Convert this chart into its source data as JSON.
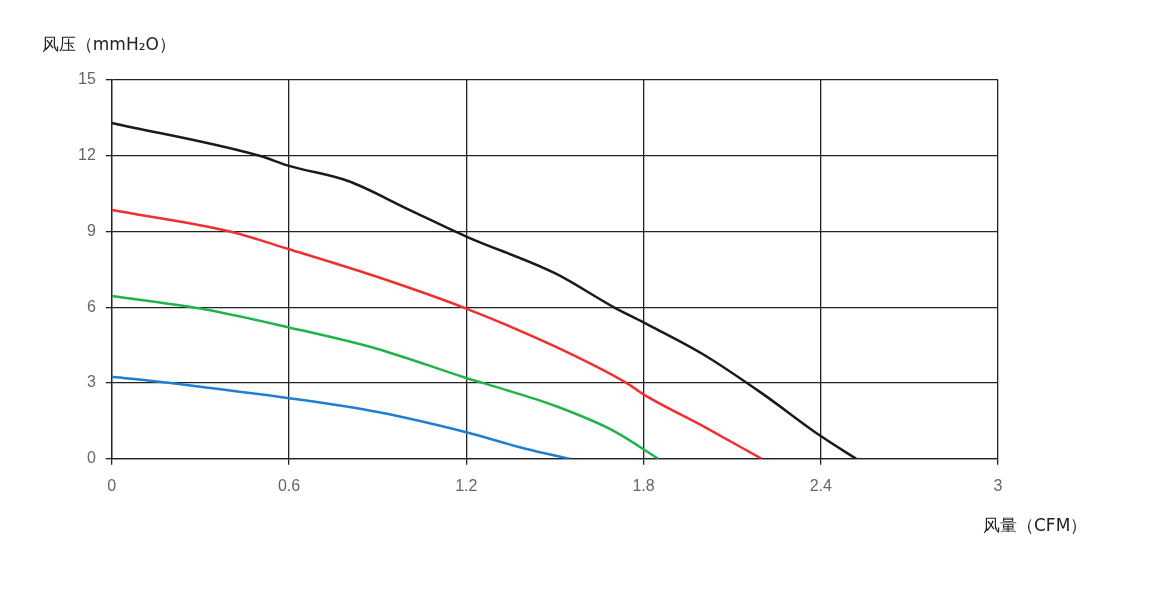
{
  "chart_data": {
    "type": "line",
    "xlabel": "风量（CFM）",
    "ylabel": "风压（mmH₂O）",
    "xlim": [
      0,
      3
    ],
    "xticks": [
      0,
      0.6,
      1.2,
      1.8,
      2.4,
      3
    ],
    "ylim": [
      0,
      15
    ],
    "yticks": [
      0,
      3,
      6,
      9,
      12,
      15
    ],
    "grid": true,
    "legend": false,
    "marker": "none",
    "line_style": "solid",
    "series": [
      {
        "color": "#1a1a1a",
        "x": [
          0,
          0.5,
          0.6,
          0.8,
          1.0,
          1.2,
          1.5,
          1.7,
          1.8,
          2.0,
          2.2,
          2.4,
          2.52
        ],
        "values": [
          13.3,
          12.0,
          11.6,
          11.0,
          9.9,
          8.8,
          7.35,
          6.0,
          5.4,
          4.15,
          2.6,
          0.9,
          0
        ]
      },
      {
        "color": "#f03030",
        "x": [
          0,
          0.4,
          0.6,
          0.9,
          1.2,
          1.5,
          1.75,
          1.8,
          2.0,
          2.2
        ],
        "values": [
          9.85,
          9.0,
          8.3,
          7.2,
          5.95,
          4.45,
          2.95,
          2.55,
          1.3,
          0
        ]
      },
      {
        "color": "#22b24c",
        "x": [
          0,
          0.3,
          0.6,
          0.9,
          1.2,
          1.3,
          1.5,
          1.7,
          1.85
        ],
        "values": [
          6.45,
          5.95,
          5.2,
          4.35,
          3.2,
          2.85,
          2.1,
          1.1,
          0
        ]
      },
      {
        "color": "#1f7fd0",
        "x": [
          0,
          0.2,
          0.3,
          0.6,
          0.9,
          1.2,
          1.4,
          1.55
        ],
        "values": [
          3.25,
          3.0,
          2.85,
          2.4,
          1.85,
          1.05,
          0.4,
          0
        ]
      }
    ]
  }
}
